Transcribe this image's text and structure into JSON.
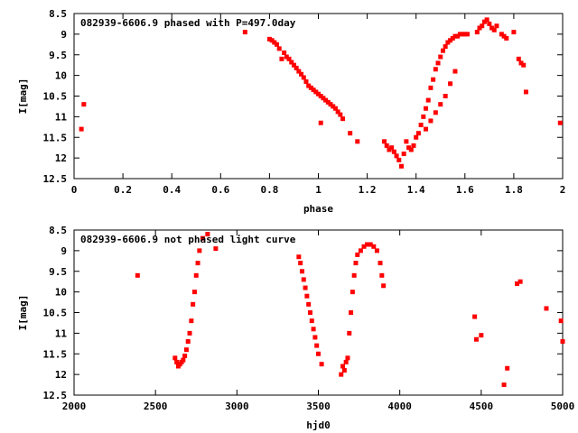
{
  "charts": [
    {
      "annotation": "082939-6606.9 phased with P=497.0day",
      "xlabel": "phase",
      "ylabel": "I[mag]",
      "xlim": [
        0,
        2
      ],
      "ylim": [
        12.5,
        8.5
      ],
      "xticks": [
        "0",
        "0.2",
        "0.4",
        "0.6",
        "0.8",
        "1",
        "1.2",
        "1.4",
        "1.6",
        "1.8",
        "2"
      ],
      "yticks": [
        "8.5",
        "9",
        "9.5",
        "10",
        "10.5",
        "11",
        "11.5",
        "12",
        "12.5"
      ]
    },
    {
      "annotation": "082939-6606.9 not phased light curve",
      "xlabel": "hjd0",
      "ylabel": "I[mag]",
      "xlim": [
        2000,
        5000
      ],
      "ylim": [
        12.5,
        8.5
      ],
      "xticks": [
        "2000",
        "2500",
        "3000",
        "3500",
        "4000",
        "4500",
        "5000"
      ],
      "yticks": [
        "8.5",
        "9",
        "9.5",
        "10",
        "10.5",
        "11",
        "11.5",
        "12",
        "12.5"
      ]
    }
  ],
  "chart_data": [
    {
      "type": "scatter",
      "x_range": [
        0,
        2
      ],
      "y_range": [
        12.5,
        8.5
      ],
      "y_inverted": true,
      "marker_color": "#ff0000",
      "grid": false,
      "points": [
        [
          0.03,
          11.3
        ],
        [
          0.04,
          10.7
        ],
        [
          0.7,
          8.95
        ],
        [
          0.8,
          9.12
        ],
        [
          0.81,
          9.15
        ],
        [
          0.82,
          9.2
        ],
        [
          0.83,
          9.25
        ],
        [
          0.84,
          9.35
        ],
        [
          0.85,
          9.6
        ],
        [
          0.86,
          9.45
        ],
        [
          0.87,
          9.55
        ],
        [
          0.88,
          9.6
        ],
        [
          0.89,
          9.68
        ],
        [
          0.9,
          9.75
        ],
        [
          0.91,
          9.82
        ],
        [
          0.92,
          9.9
        ],
        [
          0.93,
          9.97
        ],
        [
          0.94,
          10.05
        ],
        [
          0.95,
          10.15
        ],
        [
          0.96,
          10.25
        ],
        [
          0.97,
          10.3
        ],
        [
          0.98,
          10.35
        ],
        [
          0.99,
          10.4
        ],
        [
          1.0,
          10.45
        ],
        [
          1.01,
          10.5
        ],
        [
          1.02,
          10.55
        ],
        [
          1.03,
          10.6
        ],
        [
          1.04,
          10.65
        ],
        [
          1.05,
          10.7
        ],
        [
          1.06,
          10.75
        ],
        [
          1.07,
          10.8
        ],
        [
          1.08,
          10.88
        ],
        [
          1.09,
          10.95
        ],
        [
          1.1,
          11.05
        ],
        [
          1.01,
          11.15
        ],
        [
          1.13,
          11.4
        ],
        [
          1.16,
          11.6
        ],
        [
          1.27,
          11.6
        ],
        [
          1.28,
          11.7
        ],
        [
          1.29,
          11.8
        ],
        [
          1.3,
          11.75
        ],
        [
          1.31,
          11.85
        ],
        [
          1.32,
          11.95
        ],
        [
          1.33,
          12.05
        ],
        [
          1.34,
          12.2
        ],
        [
          1.35,
          11.9
        ],
        [
          1.36,
          11.6
        ],
        [
          1.37,
          11.75
        ],
        [
          1.38,
          11.8
        ],
        [
          1.39,
          11.7
        ],
        [
          1.4,
          11.5
        ],
        [
          1.41,
          11.4
        ],
        [
          1.42,
          11.2
        ],
        [
          1.43,
          11.0
        ],
        [
          1.44,
          10.8
        ],
        [
          1.45,
          10.6
        ],
        [
          1.46,
          10.3
        ],
        [
          1.47,
          10.1
        ],
        [
          1.48,
          9.85
        ],
        [
          1.49,
          9.7
        ],
        [
          1.5,
          9.55
        ],
        [
          1.51,
          9.4
        ],
        [
          1.52,
          9.3
        ],
        [
          1.53,
          9.2
        ],
        [
          1.54,
          9.15
        ],
        [
          1.55,
          9.1
        ],
        [
          1.56,
          9.05
        ],
        [
          1.57,
          9.05
        ],
        [
          1.58,
          9.0
        ],
        [
          1.59,
          9.0
        ],
        [
          1.6,
          9.0
        ],
        [
          1.61,
          9.0
        ],
        [
          1.44,
          11.3
        ],
        [
          1.46,
          11.1
        ],
        [
          1.48,
          10.9
        ],
        [
          1.5,
          10.7
        ],
        [
          1.52,
          10.5
        ],
        [
          1.54,
          10.2
        ],
        [
          1.56,
          9.9
        ],
        [
          1.65,
          8.95
        ],
        [
          1.66,
          8.85
        ],
        [
          1.67,
          8.8
        ],
        [
          1.68,
          8.7
        ],
        [
          1.69,
          8.65
        ],
        [
          1.7,
          8.75
        ],
        [
          1.71,
          8.85
        ],
        [
          1.72,
          8.9
        ],
        [
          1.73,
          8.8
        ],
        [
          1.75,
          9.0
        ],
        [
          1.76,
          9.05
        ],
        [
          1.77,
          9.1
        ],
        [
          1.8,
          8.95
        ],
        [
          1.82,
          9.6
        ],
        [
          1.83,
          9.7
        ],
        [
          1.84,
          9.75
        ],
        [
          1.85,
          10.4
        ],
        [
          1.99,
          11.15
        ]
      ]
    },
    {
      "type": "scatter",
      "x_range": [
        2000,
        5000
      ],
      "y_range": [
        12.5,
        8.5
      ],
      "y_inverted": true,
      "marker_color": "#ff0000",
      "grid": false,
      "points": [
        [
          2390,
          9.6
        ],
        [
          2620,
          11.6
        ],
        [
          2630,
          11.7
        ],
        [
          2640,
          11.8
        ],
        [
          2650,
          11.75
        ],
        [
          2660,
          11.7
        ],
        [
          2670,
          11.65
        ],
        [
          2680,
          11.55
        ],
        [
          2690,
          11.4
        ],
        [
          2700,
          11.2
        ],
        [
          2710,
          11.0
        ],
        [
          2720,
          10.7
        ],
        [
          2730,
          10.3
        ],
        [
          2740,
          10.0
        ],
        [
          2750,
          9.6
        ],
        [
          2760,
          9.3
        ],
        [
          2770,
          9.0
        ],
        [
          2790,
          8.7
        ],
        [
          2820,
          8.6
        ],
        [
          2870,
          8.95
        ],
        [
          3380,
          9.15
        ],
        [
          3390,
          9.3
        ],
        [
          3400,
          9.5
        ],
        [
          3410,
          9.7
        ],
        [
          3420,
          9.9
        ],
        [
          3430,
          10.1
        ],
        [
          3440,
          10.3
        ],
        [
          3450,
          10.5
        ],
        [
          3460,
          10.7
        ],
        [
          3470,
          10.9
        ],
        [
          3480,
          11.1
        ],
        [
          3490,
          11.3
        ],
        [
          3500,
          11.5
        ],
        [
          3520,
          11.75
        ],
        [
          3640,
          12.0
        ],
        [
          3650,
          11.8
        ],
        [
          3660,
          11.9
        ],
        [
          3670,
          11.7
        ],
        [
          3680,
          11.6
        ],
        [
          3690,
          11.0
        ],
        [
          3700,
          10.5
        ],
        [
          3710,
          10.0
        ],
        [
          3720,
          9.6
        ],
        [
          3730,
          9.3
        ],
        [
          3740,
          9.1
        ],
        [
          3760,
          9.0
        ],
        [
          3780,
          8.9
        ],
        [
          3800,
          8.85
        ],
        [
          3820,
          8.85
        ],
        [
          3840,
          8.9
        ],
        [
          3860,
          9.0
        ],
        [
          3880,
          9.3
        ],
        [
          3890,
          9.6
        ],
        [
          3900,
          9.85
        ],
        [
          4460,
          10.6
        ],
        [
          4470,
          11.15
        ],
        [
          4500,
          11.05
        ],
        [
          4640,
          12.25
        ],
        [
          4660,
          11.85
        ],
        [
          4720,
          9.8
        ],
        [
          4740,
          9.75
        ],
        [
          4900,
          10.4
        ],
        [
          4990,
          10.7
        ],
        [
          5000,
          11.2
        ],
        [
          5010,
          11.3
        ]
      ]
    }
  ]
}
